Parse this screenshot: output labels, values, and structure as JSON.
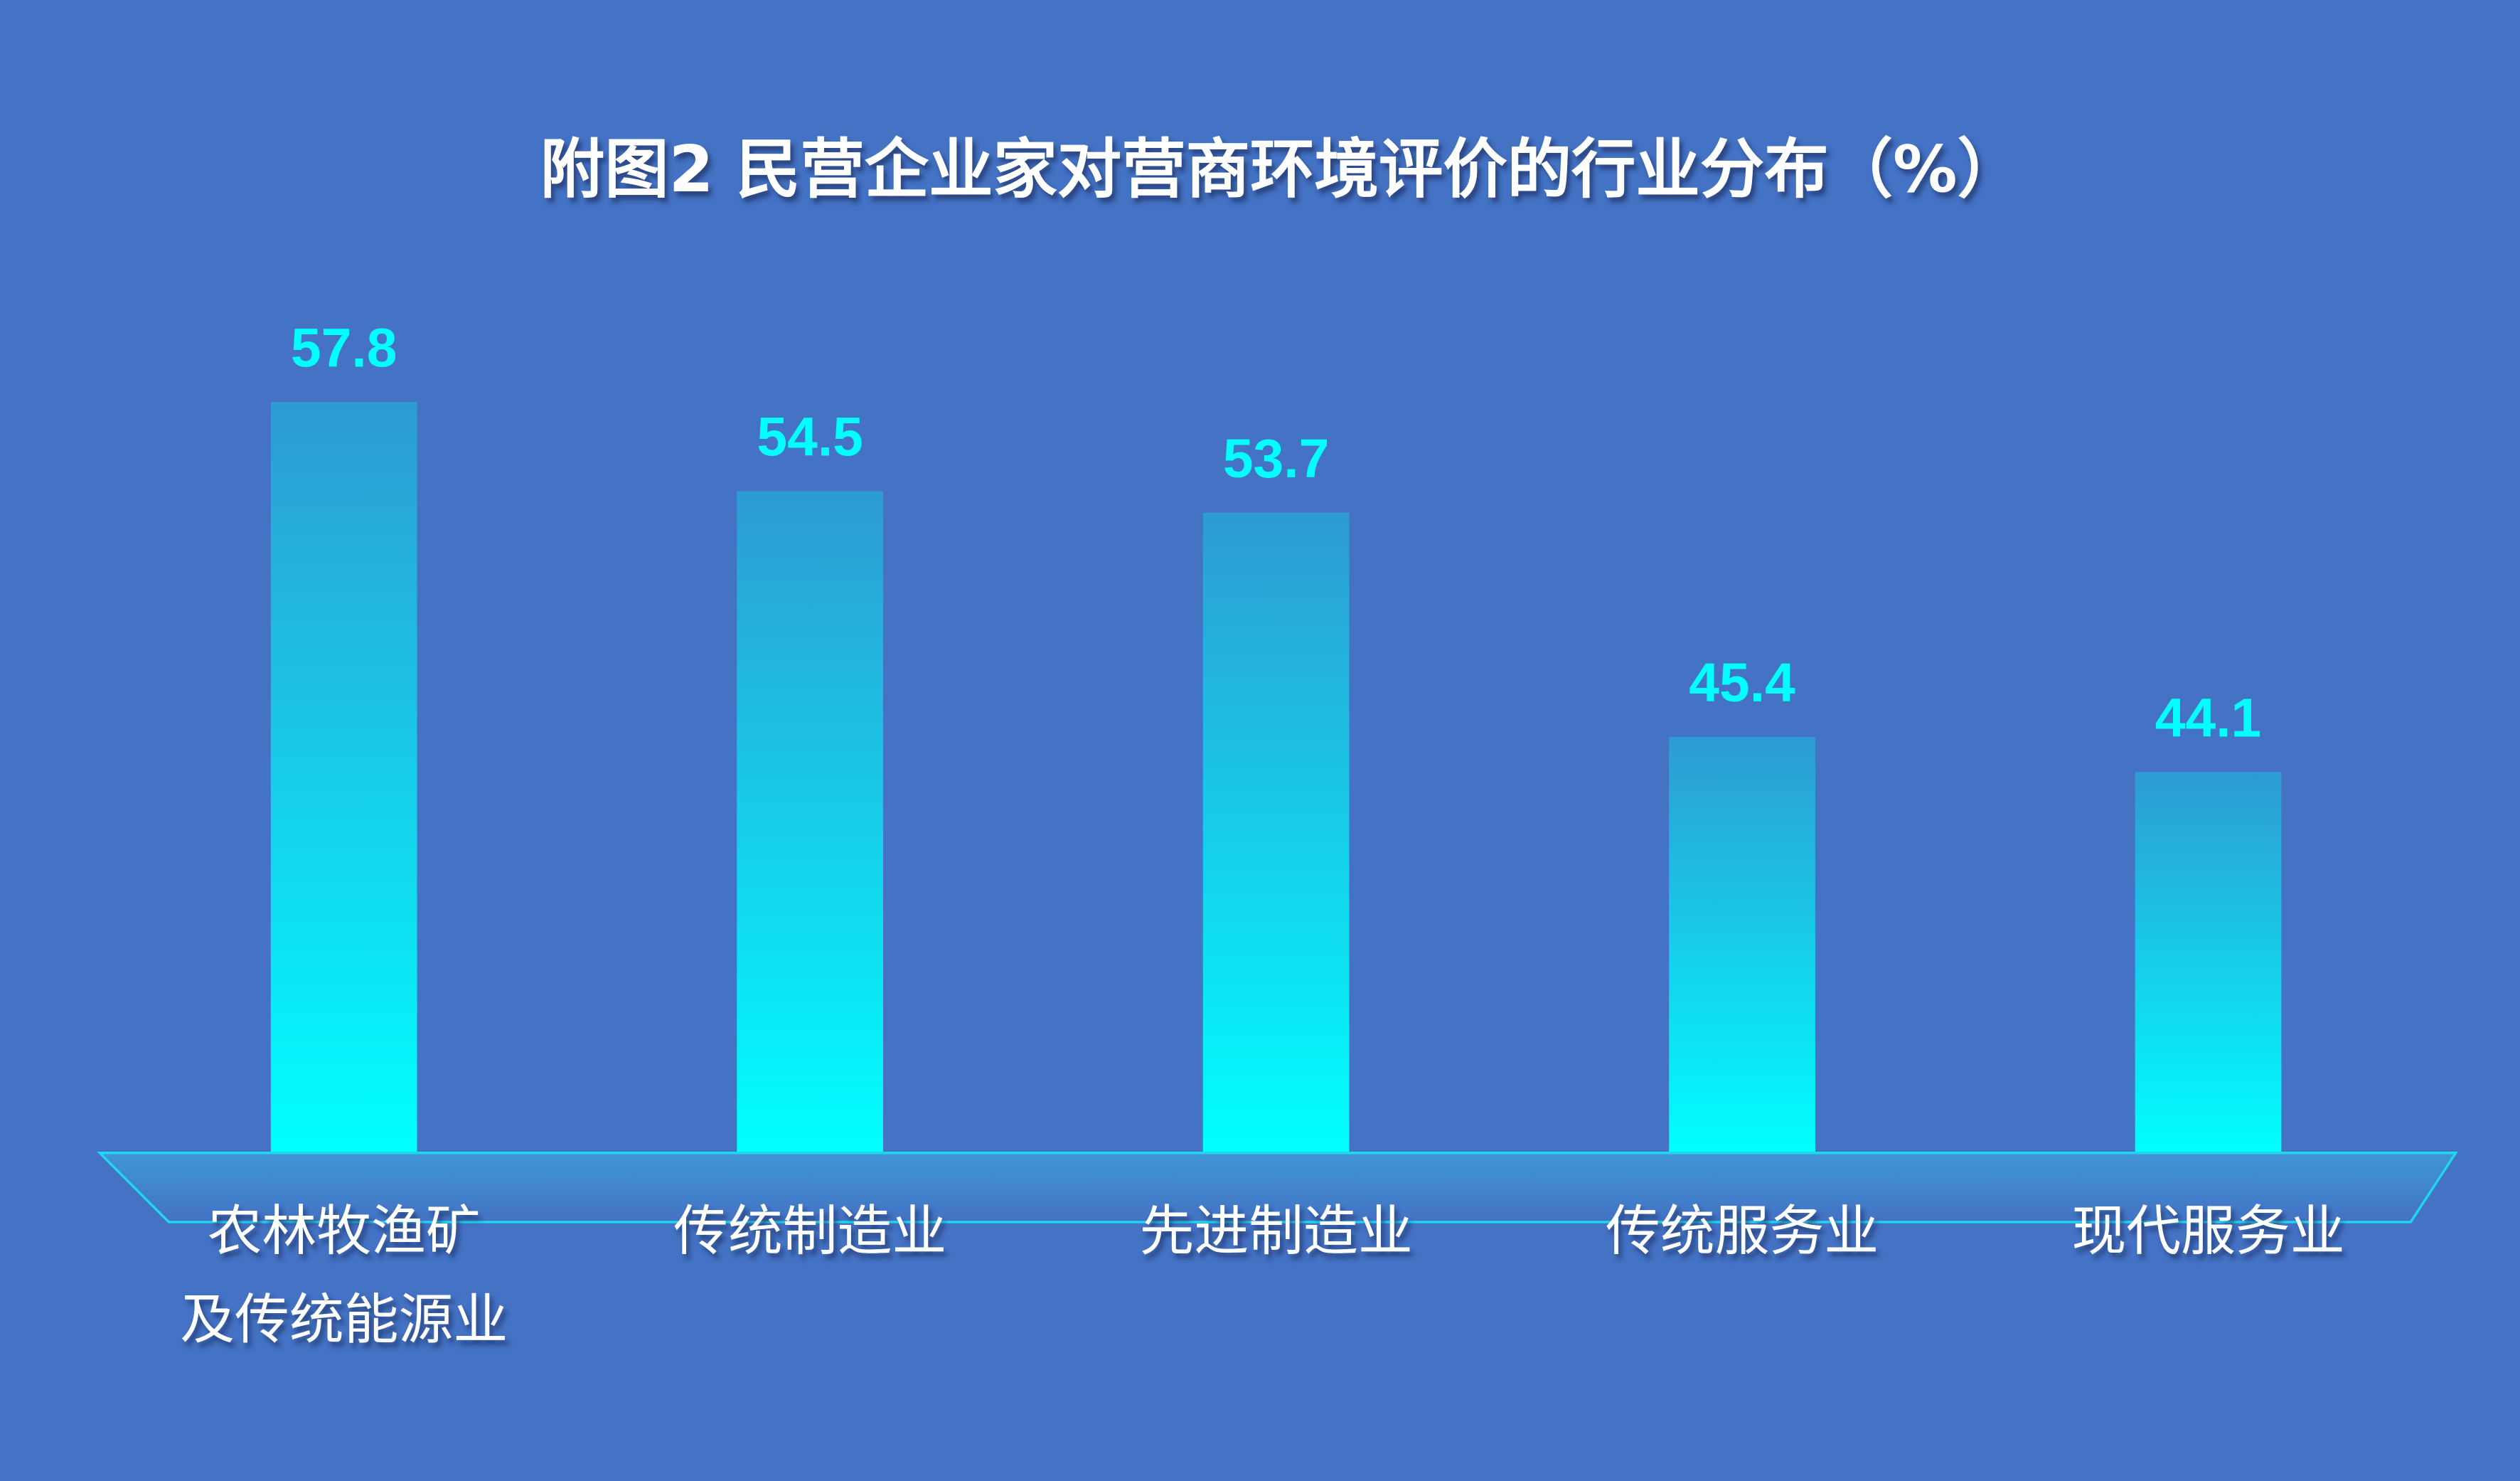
{
  "chart_data": {
    "type": "bar",
    "title": "附图2  民营企业家对营商环境评价的行业分布（%）",
    "categories": [
      [
        "农林牧渔矿",
        "及传统能源业"
      ],
      [
        "传统制造业"
      ],
      [
        "先进制造业"
      ],
      [
        "传统服务业"
      ],
      [
        "现代服务业"
      ]
    ],
    "values": [
      57.8,
      54.5,
      53.7,
      45.4,
      44.1
    ],
    "color": "#00ffff",
    "ylim": [
      30,
      60
    ]
  }
}
